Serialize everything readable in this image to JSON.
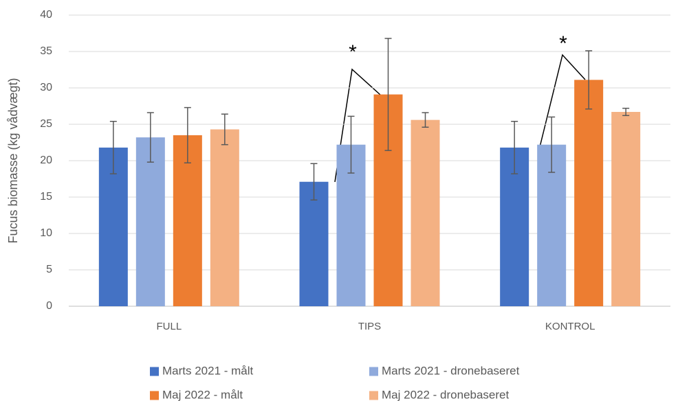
{
  "chart_data": {
    "type": "bar",
    "y_label": "Fucus biomasse (kg vådvægt)",
    "categories": [
      "FULL",
      "TIPS",
      "KONTROL"
    ],
    "series": [
      {
        "name": "Marts 2021 - målt",
        "color": "#4472c4",
        "values": [
          21.8,
          17.1,
          21.8
        ],
        "errors": [
          3.6,
          2.5,
          3.6
        ]
      },
      {
        "name": "Marts 2021 - dronebaseret",
        "color": "#8faadc",
        "values": [
          23.2,
          22.2,
          22.2
        ],
        "errors": [
          3.4,
          3.9,
          3.8
        ]
      },
      {
        "name": "Maj 2022 - målt",
        "color": "#ed7d31",
        "values": [
          23.5,
          29.1,
          31.1
        ],
        "errors": [
          3.8,
          7.7,
          4.0
        ]
      },
      {
        "name": "Maj 2022 - dronebaseret",
        "color": "#f4b183",
        "values": [
          24.3,
          25.6,
          26.7
        ],
        "errors": [
          2.1,
          1.0,
          0.5
        ]
      }
    ],
    "annotations": [
      "*",
      "*"
    ],
    "ylim": [
      0,
      40
    ],
    "yticks": [
      0,
      5,
      10,
      15,
      20,
      25,
      30,
      35,
      40
    ],
    "grid": true
  }
}
